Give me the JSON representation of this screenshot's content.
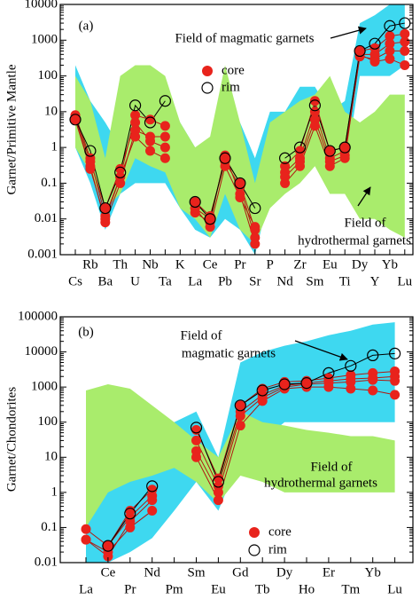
{
  "chart_data": [
    {
      "type": "line",
      "log_y": true,
      "ylabel": "Garnet/Primitive Mantle",
      "categories": [
        "Cs",
        "Rb",
        "Ba",
        "Th",
        "U",
        "Nb",
        "Ta",
        "K",
        "La",
        "Ce",
        "Pb",
        "Pr",
        "Sr",
        "P",
        "Nd",
        "Zr",
        "Sm",
        "Eu",
        "Ti",
        "Dy",
        "Y",
        "Yb",
        "Lu"
      ],
      "ylim": [
        0.001,
        10000
      ],
      "yticks": [
        0.001,
        0.01,
        0.1,
        1,
        10,
        100,
        1000,
        10000
      ],
      "annotations": [
        "(a)"
      ],
      "fields": [
        {
          "label_lines": [
            "Field of magmatic garnets"
          ],
          "color": "#3ed8f0",
          "upper": [
            200,
            20,
            5,
            1,
            50,
            50,
            50,
            5,
            1,
            0.5,
            10,
            5,
            0.5,
            10,
            10,
            50,
            50,
            10,
            20,
            3000,
            5000,
            10000,
            10000
          ],
          "lower": [
            1,
            0.1,
            0.005,
            0.05,
            0.1,
            0.1,
            0.1,
            0.02,
            0.005,
            0.003,
            0.01,
            0.005,
            0.001,
            0.05,
            0.1,
            0.5,
            2,
            0.5,
            0.2,
            100,
            100,
            100,
            200
          ]
        },
        {
          "label_lines": [
            "Field of",
            "hydrothermal garnets"
          ],
          "color": "#a9ec6c",
          "upper": [
            100,
            20,
            0.5,
            100,
            200,
            200,
            100,
            5,
            1,
            2,
            200,
            5,
            0.1,
            5,
            10,
            20,
            30,
            100,
            10,
            5,
            10,
            30,
            30
          ],
          "lower": [
            1,
            0.2,
            0.02,
            0.05,
            0.5,
            0.3,
            0.2,
            0.02,
            0.01,
            0.003,
            0.05,
            0.005,
            0.002,
            0.02,
            0.05,
            0.1,
            0.3,
            0.05,
            0.05,
            0.01,
            0.01,
            0.005,
            0.003
          ]
        }
      ],
      "series": [
        {
          "name": "core",
          "color": "#e8231c",
          "marker": "filled",
          "lines": [
            [
              8,
              0.5,
              0.012,
              0.15,
              8,
              6,
              4,
              null,
              0.02,
              0.01,
              0.5,
              0.1,
              0.005,
              null,
              0.3,
              0.8,
              20,
              0.8,
              1,
              500,
              600,
              1300,
              1500
            ],
            [
              6,
              0.3,
              0.008,
              0.1,
              3,
              2,
              2,
              null,
              0.03,
              0.012,
              0.4,
              0.08,
              0.003,
              null,
              0.2,
              0.5,
              10,
              0.5,
              0.8,
              400,
              400,
              800,
              900
            ],
            [
              7,
              0.4,
              0.02,
              0.25,
              5,
              1.5,
              1,
              null,
              0.015,
              0.008,
              0.6,
              0.05,
              0.002,
              null,
              0.15,
              0.4,
              6,
              0.4,
              0.6,
              350,
              300,
              500,
              500
            ],
            [
              6,
              0.25,
              0.01,
              0.15,
              2,
              0.8,
              0.5,
              null,
              0.02,
              0.006,
              0.3,
              0.04,
              0.006,
              null,
              0.1,
              0.3,
              4,
              0.3,
              0.5,
              400,
              250,
              300,
              200
            ]
          ]
        },
        {
          "name": "rim",
          "color": "#000000",
          "marker": "open",
          "lines": [
            [
              6,
              0.8,
              0.02,
              0.2,
              15,
              5,
              20,
              null,
              0.03,
              0.01,
              0.5,
              0.1,
              0.02,
              null,
              0.5,
              1,
              15,
              0.8,
              1,
              500,
              800,
              2500,
              3000
            ]
          ]
        }
      ]
    },
    {
      "type": "line",
      "log_y": true,
      "ylabel": "Garnet/Chondorites",
      "categories": [
        "La",
        "Ce",
        "Pr",
        "Nd",
        "Pm",
        "Sm",
        "Eu",
        "Gd",
        "Tb",
        "Dy",
        "Ho",
        "Er",
        "Tm",
        "Yb",
        "Lu"
      ],
      "ylim": [
        0.01,
        100000
      ],
      "yticks": [
        0.01,
        0.1,
        1,
        10,
        100,
        1000,
        10000,
        100000
      ],
      "annotations": [
        "(b)"
      ],
      "fields": [
        {
          "label_lines": [
            "Field of",
            "magmatic garnets"
          ],
          "color": "#3ed8f0",
          "upper": [
            3,
            5,
            10,
            50,
            100,
            200,
            10,
            5000,
            10000,
            15000,
            20000,
            30000,
            40000,
            60000,
            70000
          ],
          "lower": [
            0.01,
            0.01,
            0.02,
            0.05,
            0.3,
            2,
            0.3,
            10,
            30,
            100,
            100,
            100,
            100,
            100,
            100
          ]
        },
        {
          "label_lines": [
            "Field of",
            "hydrothermal garnets"
          ],
          "color": "#a9ec6c",
          "upper": [
            800,
            1200,
            900,
            300,
            100,
            30,
            10,
            200,
            100,
            80,
            60,
            50,
            40,
            40,
            30
          ],
          "lower": [
            0.1,
            1,
            2,
            3,
            5,
            2,
            0.5,
            3,
            2,
            1,
            1,
            1,
            1,
            1,
            1
          ]
        }
      ],
      "series": [
        {
          "name": "core",
          "color": "#e8231c",
          "marker": "filled",
          "lines": [
            [
              0.09,
              0.03,
              0.3,
              1.2,
              null,
              60,
              2.5,
              300,
              900,
              1400,
              1500,
              1800,
              2200,
              2500,
              2800
            ],
            [
              0.045,
              0.015,
              0.15,
              0.6,
              null,
              30,
              1.5,
              200,
              600,
              1100,
              1300,
              1500,
              1700,
              1800,
              2000
            ],
            [
              0.045,
              0.02,
              0.1,
              0.3,
              null,
              15,
              1,
              150,
              500,
              1000,
              1200,
              1300,
              1400,
              1600,
              1500
            ],
            [
              null,
              0.03,
              0.2,
              0.8,
              null,
              10,
              0.6,
              80,
              400,
              900,
              1000,
              1000,
              900,
              800,
              600
            ]
          ]
        },
        {
          "name": "rim",
          "color": "#000000",
          "marker": "open",
          "lines": [
            [
              null,
              0.03,
              0.25,
              1.5,
              null,
              70,
              2,
              300,
              800,
              1200,
              1300,
              2500,
              4000,
              8000,
              9000
            ]
          ]
        }
      ]
    }
  ]
}
